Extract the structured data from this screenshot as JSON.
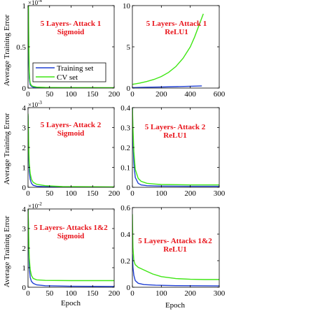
{
  "figure": {
    "ylabel": "Average Training Error",
    "xlabel": "Epoch",
    "legend": {
      "training": "Training set",
      "cv": "CV set"
    },
    "colors": {
      "training": "#1f3fd4",
      "cv": "#3ee613",
      "annotation": "#e8141b"
    }
  },
  "chart_data": [
    {
      "type": "line",
      "title": "5 Layers- Attack 1",
      "subtitle": "Sigmoid",
      "xlim": [
        0,
        200
      ],
      "ylim": [
        0,
        1.0
      ],
      "y_exponent": "-4",
      "xticks": [
        0,
        50,
        100,
        150,
        200
      ],
      "yticks": [
        0,
        0.5,
        1
      ],
      "series": [
        {
          "name": "Training set",
          "x": [
            0,
            1,
            2,
            3,
            4,
            5,
            8,
            12,
            20,
            40,
            80,
            200
          ],
          "y": [
            1.08,
            0.9,
            0.3,
            0.12,
            0.07,
            0.04,
            0.02,
            0.01,
            0.006,
            0.004,
            0.003,
            0.002
          ]
        },
        {
          "name": "CV set",
          "x": [
            0,
            1,
            2,
            3,
            4,
            5,
            8,
            12,
            20,
            40,
            80,
            200
          ],
          "y": [
            1.08,
            1.0,
            0.5,
            0.2,
            0.1,
            0.06,
            0.03,
            0.02,
            0.012,
            0.008,
            0.006,
            0.005
          ]
        }
      ]
    },
    {
      "type": "line",
      "title": "5 Layers- Attack 1",
      "subtitle": "ReLU1",
      "xlim": [
        0,
        600
      ],
      "ylim": [
        0,
        10
      ],
      "xticks": [
        0,
        200,
        400,
        600
      ],
      "yticks": [
        0,
        5,
        10
      ],
      "series": [
        {
          "name": "Training set",
          "x": [
            0,
            50,
            100,
            200,
            300,
            400,
            480
          ],
          "y": [
            0.05,
            0.08,
            0.1,
            0.13,
            0.17,
            0.22,
            0.26
          ]
        },
        {
          "name": "CV set",
          "x": [
            0,
            50,
            100,
            150,
            200,
            250,
            300,
            350,
            400,
            430,
            460,
            490
          ],
          "y": [
            0.45,
            0.6,
            0.8,
            1.05,
            1.4,
            1.9,
            2.6,
            3.6,
            5.0,
            6.2,
            7.6,
            9.0
          ]
        }
      ]
    },
    {
      "type": "line",
      "title": "5 Layers- Attack 2",
      "subtitle": "Sigmoid",
      "xlim": [
        0,
        200
      ],
      "ylim": [
        0,
        4
      ],
      "y_exponent": "-3",
      "xticks": [
        0,
        50,
        100,
        150,
        200
      ],
      "yticks": [
        0,
        1,
        2,
        3,
        4
      ],
      "series": [
        {
          "name": "Training set",
          "x": [
            0,
            1,
            2,
            3,
            5,
            8,
            12,
            20,
            40,
            80,
            200
          ],
          "y": [
            3.6,
            2.5,
            1.4,
            0.8,
            0.4,
            0.2,
            0.1,
            0.05,
            0.03,
            0.02,
            0.01
          ]
        },
        {
          "name": "CV set",
          "x": [
            0,
            1,
            2,
            3,
            5,
            8,
            12,
            20,
            40,
            80,
            200
          ],
          "y": [
            3.7,
            2.8,
            1.8,
            1.2,
            0.7,
            0.4,
            0.25,
            0.15,
            0.08,
            0.04,
            0.02
          ]
        }
      ]
    },
    {
      "type": "line",
      "title": "5 Layers- Attack 2",
      "subtitle": "ReLU1",
      "xlim": [
        0,
        300
      ],
      "ylim": [
        0,
        0.4
      ],
      "xticks": [
        0,
        100,
        200,
        300
      ],
      "yticks": [
        0,
        0.1,
        0.2,
        0.3,
        0.4
      ],
      "series": [
        {
          "name": "Training set",
          "x": [
            0,
            2,
            5,
            10,
            20,
            30,
            50,
            100,
            200,
            300
          ],
          "y": [
            0.4,
            0.25,
            0.12,
            0.05,
            0.02,
            0.012,
            0.008,
            0.006,
            0.005,
            0.005
          ]
        },
        {
          "name": "CV set",
          "x": [
            0,
            2,
            5,
            10,
            20,
            30,
            50,
            80,
            100,
            200,
            300
          ],
          "y": [
            0.41,
            0.3,
            0.18,
            0.09,
            0.045,
            0.03,
            0.02,
            0.016,
            0.014,
            0.012,
            0.012
          ]
        }
      ]
    },
    {
      "type": "line",
      "title": "5 Layers- Attacks 1&2",
      "subtitle": "Sigmoid",
      "xlim": [
        0,
        200
      ],
      "ylim": [
        0,
        4
      ],
      "y_exponent": "-2",
      "xticks": [
        0,
        50,
        100,
        150,
        200
      ],
      "yticks": [
        0,
        1,
        2,
        3,
        4
      ],
      "series": [
        {
          "name": "Training set",
          "x": [
            0,
            1,
            2,
            3,
            5,
            8,
            12,
            20,
            40,
            100,
            200
          ],
          "y": [
            4.2,
            3.0,
            1.8,
            1.0,
            0.5,
            0.3,
            0.2,
            0.12,
            0.08,
            0.05,
            0.04
          ]
        },
        {
          "name": "CV set",
          "x": [
            0,
            1,
            2,
            3,
            5,
            8,
            12,
            20,
            40,
            100,
            200
          ],
          "y": [
            4.2,
            3.3,
            2.2,
            1.5,
            0.9,
            0.6,
            0.45,
            0.38,
            0.35,
            0.34,
            0.34
          ]
        }
      ]
    },
    {
      "type": "line",
      "title": "5 Layers- Attacks 1&2",
      "subtitle": "ReLU1",
      "xlim": [
        0,
        300
      ],
      "ylim": [
        0,
        0.6
      ],
      "xticks": [
        0,
        100,
        200,
        300
      ],
      "yticks": [
        0,
        0.2,
        0.4,
        0.6
      ],
      "series": [
        {
          "name": "Training set",
          "x": [
            0,
            2,
            5,
            10,
            20,
            40,
            80,
            150,
            300
          ],
          "y": [
            0.25,
            0.15,
            0.09,
            0.05,
            0.03,
            0.02,
            0.015,
            0.012,
            0.01
          ]
        },
        {
          "name": "CV set",
          "x": [
            0,
            2,
            5,
            10,
            20,
            30,
            50,
            70,
            100,
            150,
            200,
            250,
            300
          ],
          "y": [
            0.55,
            0.3,
            0.2,
            0.17,
            0.15,
            0.14,
            0.12,
            0.1,
            0.08,
            0.065,
            0.06,
            0.058,
            0.058
          ]
        }
      ]
    }
  ]
}
